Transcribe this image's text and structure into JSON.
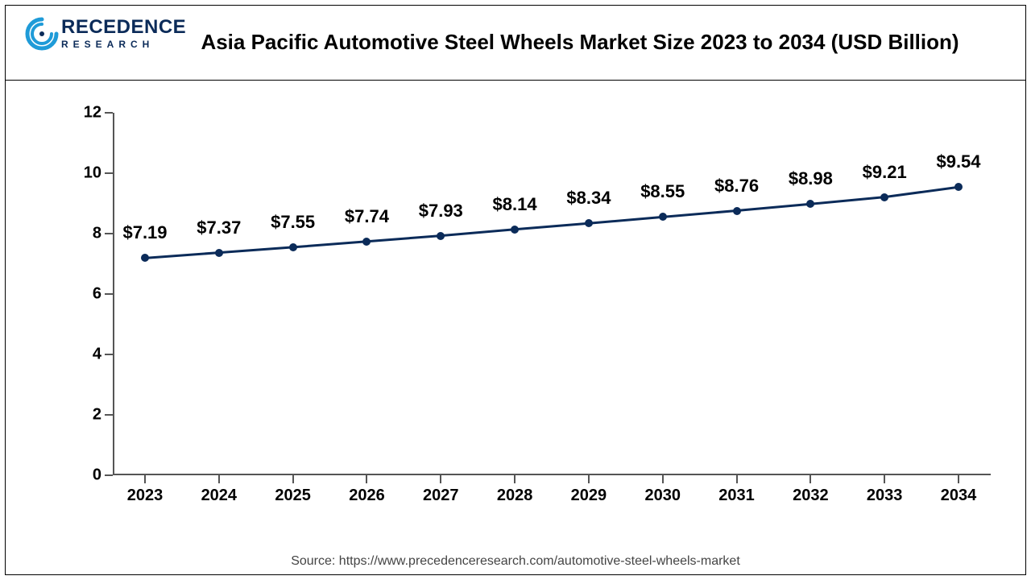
{
  "logo": {
    "main": "RECEDENCE",
    "sub": "RESEARCH",
    "swirl_color": "#1f9bd8",
    "text_color": "#0b2b59"
  },
  "chart": {
    "type": "line",
    "title": "Asia Pacific Automotive Steel Wheels Market Size 2023 to 2034 (USD Billion)",
    "title_fontsize": 26,
    "categories": [
      "2023",
      "2024",
      "2025",
      "2026",
      "2027",
      "2028",
      "2029",
      "2030",
      "2031",
      "2032",
      "2033",
      "2034"
    ],
    "values": [
      7.19,
      7.37,
      7.55,
      7.74,
      7.93,
      8.14,
      8.34,
      8.55,
      8.76,
      8.98,
      9.21,
      9.54
    ],
    "value_labels": [
      "$7.19",
      "$7.37",
      "$7.55",
      "$7.74",
      "$7.93",
      "$8.14",
      "$8.34",
      "$8.55",
      "$8.76",
      "$8.98",
      "$9.21",
      "$9.54"
    ],
    "ylim": [
      0,
      12
    ],
    "ytick_step": 2,
    "yticks": [
      0,
      2,
      4,
      6,
      8,
      10,
      12
    ],
    "line_color": "#0b2b59",
    "line_width": 3,
    "marker_color": "#0b2b59",
    "marker_size": 10,
    "background_color": "#ffffff",
    "axis_color": "#555555",
    "label_fontsize": 20,
    "data_label_fontsize": 22,
    "text_color": "#000000"
  },
  "source": "Source: https://www.precedenceresearch.com/automotive-steel-wheels-market"
}
